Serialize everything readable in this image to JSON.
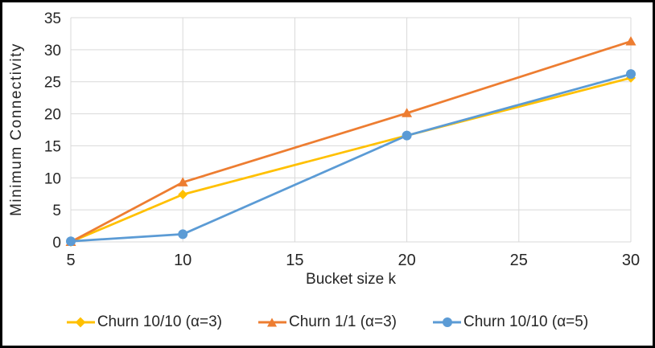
{
  "chart_data": {
    "type": "line",
    "title": "",
    "xlabel": "Bucket size k",
    "ylabel": "Minimum Connectivity",
    "xlim": [
      5,
      30
    ],
    "ylim": [
      0,
      35
    ],
    "x_ticks": [
      5,
      10,
      15,
      20,
      25,
      30
    ],
    "y_ticks": [
      0,
      5,
      10,
      15,
      20,
      25,
      30,
      35
    ],
    "grid": "both",
    "legend_position": "bottom",
    "x": [
      5,
      10,
      20,
      30
    ],
    "series": [
      {
        "name": "Churn 10/10 (α=3)",
        "marker": "diamond",
        "color": "#FFC000",
        "values": [
          0,
          7.4,
          16.6,
          25.6
        ]
      },
      {
        "name": "Churn 1/1 (α=3)",
        "marker": "triangle",
        "color": "#ED7D31",
        "values": [
          0,
          9.3,
          20.1,
          31.3
        ]
      },
      {
        "name": "Churn 10/10 (α=5)",
        "marker": "circle",
        "color": "#5B9BD5",
        "values": [
          0.1,
          1.2,
          16.6,
          26.2
        ]
      }
    ],
    "colors": {
      "gridline": "#D9D9D9",
      "text": "#262626",
      "frame_border": "#000000",
      "background": "#FFFFFF"
    }
  }
}
